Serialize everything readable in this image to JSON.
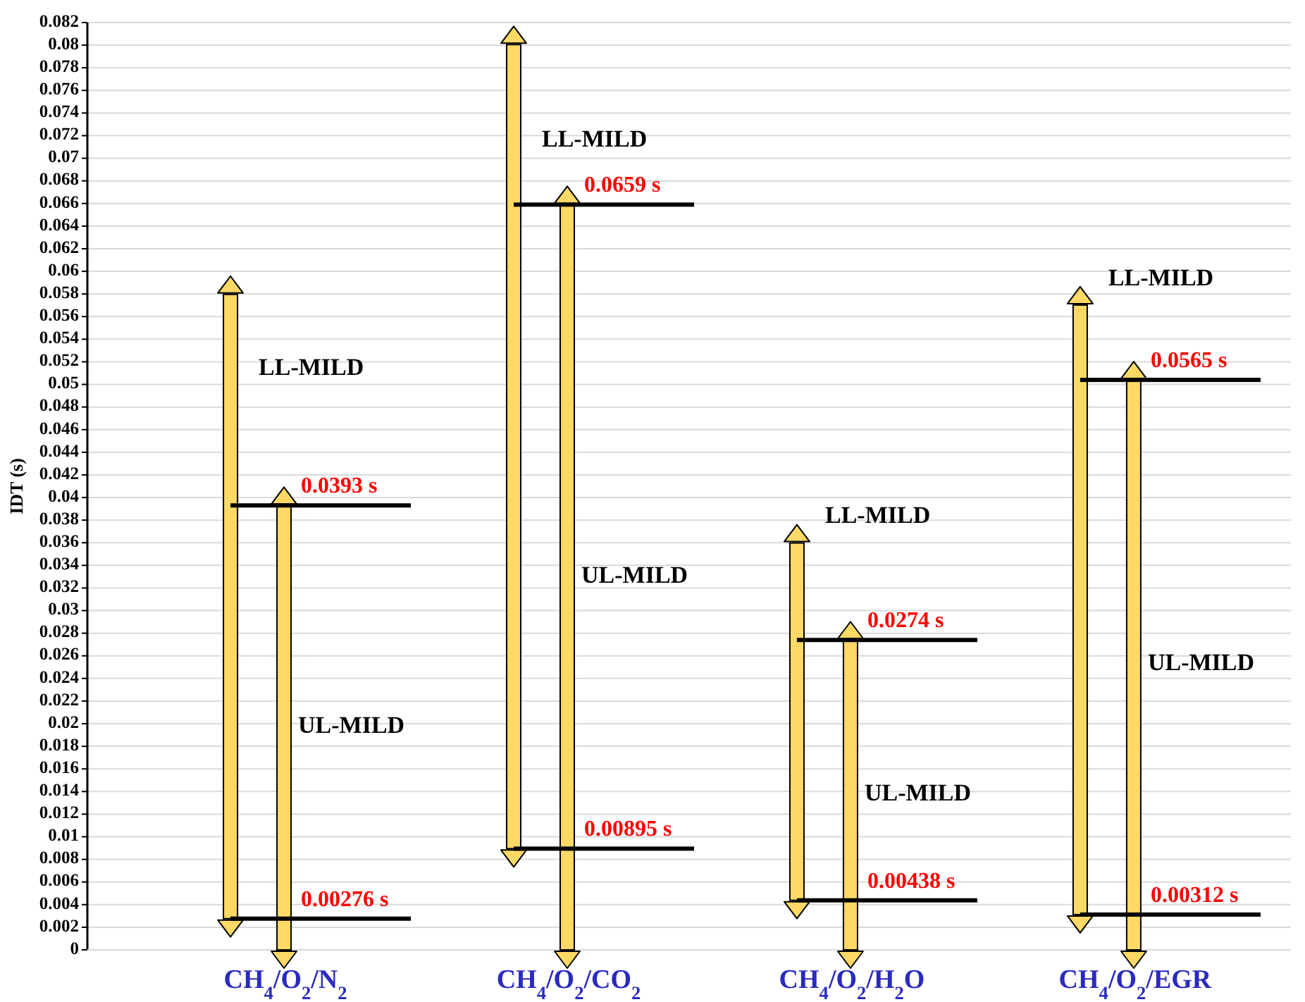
{
  "chart_data": {
    "type": "bar",
    "ylabel": "IDT (s)",
    "categories": [
      "CH$_{4}$/O$_{2}$/N$_{2}$",
      "CH$_{4}$/O$_{2}$/CO$_{2}$",
      "CH$_{4}$/O$_{2}$/H$_{2}$O",
      "CH$_{4}$/O$_{2}$/EGR"
    ],
    "series": [
      {
        "name": "LL-MILD",
        "color": "#ffd966",
        "base": [
          0.00276,
          0.00895,
          0.00438,
          0.00312
        ],
        "values": [
          0.0552,
          0.0711,
          0.0316,
          0.0539
        ]
      },
      {
        "name": "UL-MILD",
        "color": "#ffd966",
        "base": [
          0,
          0,
          0,
          0
        ],
        "values": [
          0.0393,
          0.0659,
          0.0274,
          0.0504
        ]
      }
    ],
    "annotations": [
      {
        "text": "0.0393 s",
        "x": "CH$_{4}$/O$_{2}$/N$_{2}$",
        "y": 0.0393
      },
      {
        "text": "0.00276 s",
        "x": "CH$_{4}$/O$_{2}$/N$_{2}$",
        "y": 0.00276
      },
      {
        "text": "0.0659 s",
        "x": "CH$_{4}$/O$_{2}$/CO$_{2}$",
        "y": 0.0659
      },
      {
        "text": "0.00895 s",
        "x": "CH$_{4}$/O$_{2}$/CO$_{2}$",
        "y": 0.00895
      },
      {
        "text": "0.0274 s",
        "x": "CH$_{4}$/O$_{2}$/H$_{2}$O",
        "y": 0.0274
      },
      {
        "text": "0.00438 s",
        "x": "CH$_{4}$/O$_{2}$/H$_{2}$O",
        "y": 0.00438
      },
      {
        "text": "0.0565 s",
        "x": "CH$_{4}$/O$_{2}$/EGR",
        "y": 0.0504
      },
      {
        "text": "0.00312 s",
        "x": "CH$_{4}$/O$_{2}$/EGR",
        "y": 0.00312
      }
    ],
    "ylim": [
      0,
      0.082
    ],
    "yticks": [
      0,
      0.002,
      0.004,
      0.006,
      0.008,
      0.01,
      0.012,
      0.014,
      0.016,
      0.018,
      0.02,
      0.022,
      0.024,
      0.026,
      0.028,
      0.03,
      0.032,
      0.034,
      0.036,
      0.038,
      0.04,
      0.042,
      0.044,
      0.046,
      0.048,
      0.05,
      0.052,
      0.054,
      0.056,
      0.058,
      0.06,
      0.062,
      0.064,
      0.066,
      0.068,
      0.07,
      0.072,
      0.074,
      0.076,
      0.078,
      0.08,
      0.082
    ],
    "grid": "y"
  }
}
